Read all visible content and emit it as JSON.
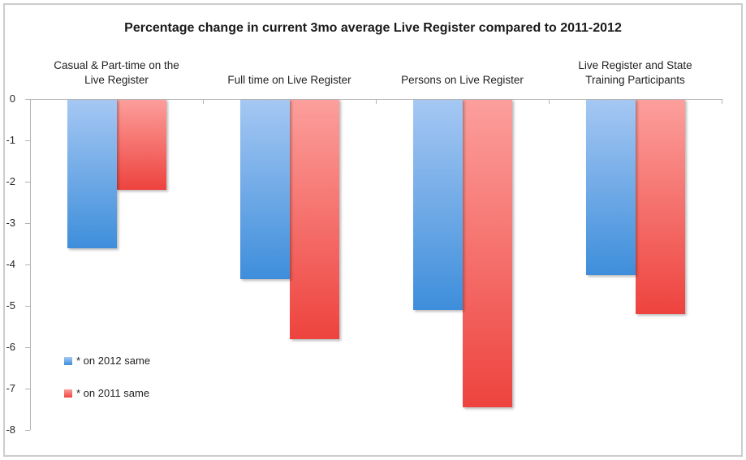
{
  "chart_data": {
    "type": "bar",
    "title": "Percentage change in current 3mo average Live Register compared to 2011-2012",
    "categories": [
      "Casual & Part-time on the\nLive Register",
      "Full time on Live Register",
      "Persons on Live Register",
      "Live Register and State\nTraining Participants"
    ],
    "series": [
      {
        "name": "* on 2012 same",
        "values": [
          -3.6,
          -4.35,
          -5.1,
          -4.25
        ],
        "color_top": "#a6c8f3",
        "color_bottom": "#3e8edb"
      },
      {
        "name": "* on 2011 same",
        "values": [
          -2.2,
          -5.8,
          -7.45,
          -5.2
        ],
        "color_top": "#fc9f9c",
        "color_bottom": "#ee433e"
      }
    ],
    "y_ticks": [
      "0",
      "-1",
      "-2",
      "-3",
      "-4",
      "-5",
      "-6",
      "-7",
      "-8"
    ],
    "ylim": [
      -8,
      0
    ],
    "xlabel": "",
    "ylabel": "",
    "grid": false,
    "legend_position": "inside-bottom-left",
    "axis_color": "#b3b3b3"
  }
}
